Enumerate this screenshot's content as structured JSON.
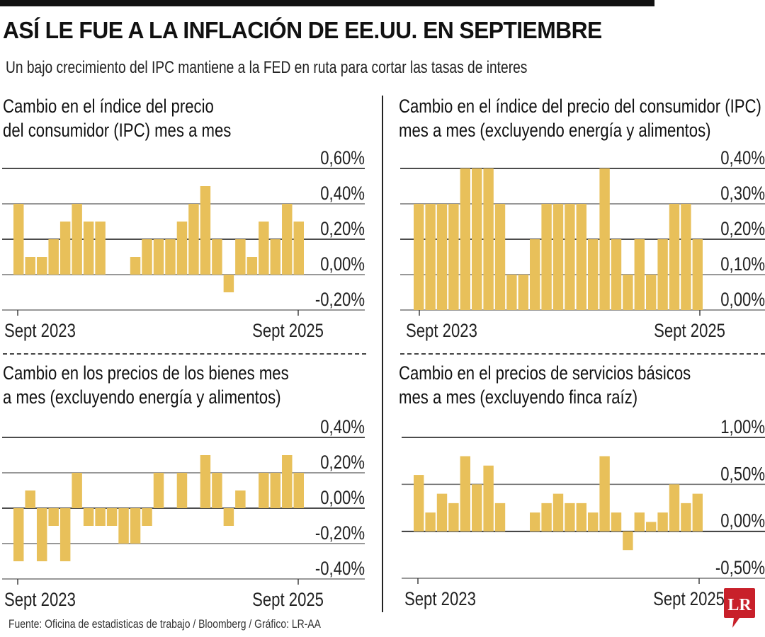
{
  "header": {
    "title": "ASÍ LE FUE A LA INFLACIÓN DE EE.UU. EN SEPTIEMBRE",
    "subtitle": "Un bajo crecimiento del IPC mantiene a la FED en ruta para cortar las tasas de interes"
  },
  "footer": {
    "source": "Fuente: Oficina de estadisticas de trabajo / Bloomberg / Gráfico: LR-AA",
    "logo_text": "LR"
  },
  "colors": {
    "bar": "#E8C05A",
    "logo_red": "#C8202A",
    "text": "#111111"
  },
  "chart_data": [
    {
      "type": "bar",
      "title_lines": [
        "Cambio en el índice del precio",
        "del consumidor (IPC) mes a mes"
      ],
      "x_labels": [
        "Sept 2023",
        "Sept 2025"
      ],
      "x_range": [
        "Sept 2023",
        "Sept 2025"
      ],
      "ylim": [
        -0.2,
        0.6
      ],
      "yticks": [
        0.6,
        0.4,
        0.2,
        0.0,
        -0.2
      ],
      "ytick_labels": [
        "0,60%",
        "0,40%",
        "0,20%",
        "0,00%",
        "-0,20%"
      ],
      "unit": "%",
      "grid": true,
      "values": [
        0.4,
        0.1,
        0.1,
        0.2,
        0.3,
        0.4,
        0.3,
        0.3,
        0.0,
        0.0,
        0.1,
        0.2,
        0.2,
        0.2,
        0.3,
        0.4,
        0.5,
        0.2,
        -0.1,
        0.2,
        0.1,
        0.3,
        0.2,
        0.4,
        0.3
      ]
    },
    {
      "type": "bar",
      "title_lines": [
        "Cambio en el índice del precio del consumidor (IPC)",
        "mes a mes (excluyendo energía y alimentos)"
      ],
      "x_labels": [
        "Sept 2023",
        "Sept 2025"
      ],
      "x_range": [
        "Sept 2023",
        "Sept 2025"
      ],
      "ylim": [
        0.0,
        0.4
      ],
      "yticks": [
        0.4,
        0.3,
        0.2,
        0.1,
        0.0
      ],
      "ytick_labels": [
        "0,40%",
        "0,30%",
        "0,20%",
        "0,10%",
        "0,00%"
      ],
      "unit": "%",
      "grid": true,
      "values": [
        0.3,
        0.3,
        0.3,
        0.3,
        0.4,
        0.4,
        0.4,
        0.3,
        0.1,
        0.1,
        0.2,
        0.3,
        0.3,
        0.3,
        0.3,
        0.2,
        0.4,
        0.2,
        0.1,
        0.2,
        0.1,
        0.2,
        0.3,
        0.3,
        0.2
      ]
    },
    {
      "type": "bar",
      "title_lines": [
        "Cambio en los precios de los bienes mes",
        "a mes (excluyendo energía y alimentos)"
      ],
      "x_labels": [
        "Sept 2023",
        "Sept 2025"
      ],
      "x_range": [
        "Sept 2023",
        "Sept 2025"
      ],
      "ylim": [
        -0.4,
        0.4
      ],
      "yticks": [
        0.4,
        0.2,
        0.0,
        -0.2,
        -0.4
      ],
      "ytick_labels": [
        "0,40%",
        "0,20%",
        "0,00%",
        "-0,20%",
        "-0,40%"
      ],
      "unit": "%",
      "grid": true,
      "values": [
        -0.3,
        0.1,
        -0.3,
        -0.1,
        -0.3,
        0.2,
        -0.1,
        -0.1,
        -0.1,
        -0.2,
        -0.2,
        -0.1,
        0.2,
        0.0,
        0.2,
        0.0,
        0.3,
        0.2,
        -0.1,
        0.1,
        0.0,
        0.2,
        0.2,
        0.3,
        0.2
      ]
    },
    {
      "type": "bar",
      "title_lines": [
        "Cambio en el precios de servicios básicos",
        "mes a mes (excluyendo finca raíz)"
      ],
      "x_labels": [
        "Sept 2023",
        "Sept 2025"
      ],
      "x_range": [
        "Sept 2023",
        "Sept 2025"
      ],
      "ylim": [
        -0.5,
        1.0
      ],
      "yticks": [
        1.0,
        0.5,
        0.0,
        -0.5
      ],
      "ytick_labels": [
        "1,00%",
        "0,50%",
        "0,00%",
        "-0,50%"
      ],
      "unit": "%",
      "grid": true,
      "values": [
        0.6,
        0.2,
        0.4,
        0.3,
        0.8,
        0.5,
        0.7,
        0.3,
        0.0,
        0.0,
        0.2,
        0.3,
        0.4,
        0.3,
        0.3,
        0.2,
        0.8,
        0.2,
        -0.2,
        0.2,
        0.1,
        0.2,
        0.5,
        0.3,
        0.4
      ]
    }
  ]
}
